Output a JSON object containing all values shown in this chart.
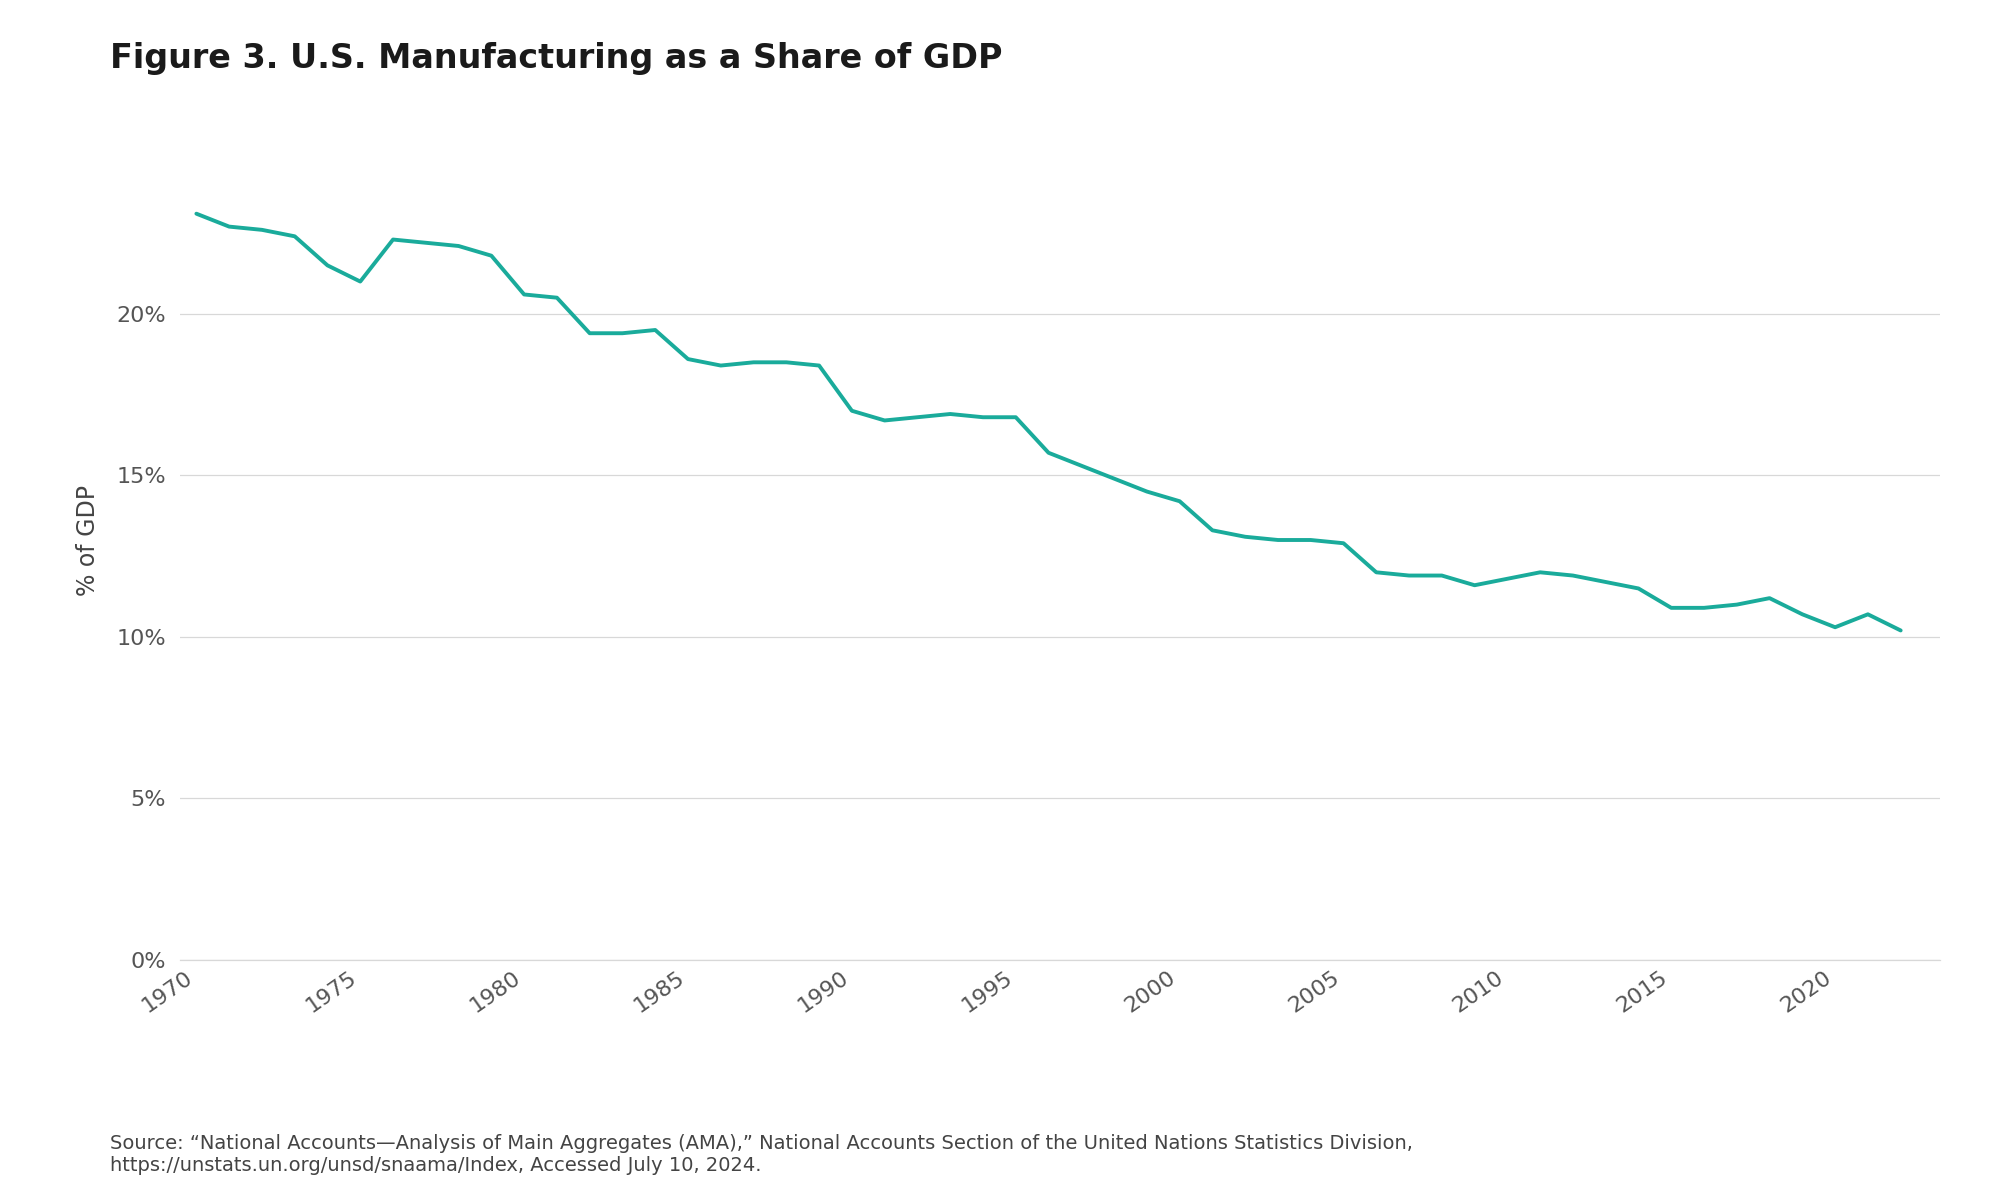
{
  "title": "Figure 3. U.S. Manufacturing as a Share of GDP",
  "ylabel": "% of GDP",
  "source_text": "Source: “National Accounts—Analysis of Main Aggregates (AMA),” National Accounts Section of the United Nations Statistics Division,\nhttps://unstats.un.org/unsd/snaama/Index, Accessed July 10, 2024.",
  "line_color": "#1aab9b",
  "line_width": 2.8,
  "background_color": "#ffffff",
  "grid_color": "#d8d8d8",
  "years": [
    1970,
    1971,
    1972,
    1973,
    1974,
    1975,
    1976,
    1977,
    1978,
    1979,
    1980,
    1981,
    1982,
    1983,
    1984,
    1985,
    1986,
    1987,
    1988,
    1989,
    1990,
    1991,
    1992,
    1993,
    1994,
    1995,
    1996,
    1997,
    1998,
    1999,
    2000,
    2001,
    2002,
    2003,
    2004,
    2005,
    2006,
    2007,
    2008,
    2009,
    2010,
    2011,
    2012,
    2013,
    2014,
    2015,
    2016,
    2017,
    2018,
    2019,
    2020,
    2021,
    2022
  ],
  "values": [
    23.1,
    22.7,
    22.6,
    22.4,
    21.5,
    21.0,
    22.3,
    22.2,
    22.1,
    21.8,
    20.6,
    20.5,
    19.4,
    19.4,
    19.5,
    18.6,
    18.4,
    18.5,
    18.5,
    18.4,
    17.0,
    16.7,
    16.8,
    16.9,
    16.8,
    16.8,
    15.7,
    15.3,
    14.9,
    14.5,
    14.2,
    13.3,
    13.1,
    13.0,
    13.0,
    12.9,
    12.0,
    11.9,
    11.9,
    11.6,
    11.8,
    12.0,
    11.9,
    11.7,
    11.5,
    10.9,
    10.9,
    11.0,
    11.2,
    10.7,
    10.3,
    10.7,
    10.2
  ],
  "ylim": [
    0,
    26
  ],
  "yticks": [
    0,
    5,
    10,
    15,
    20
  ],
  "ytick_labels": [
    "0%",
    "5%",
    "10%",
    "15%",
    "20%"
  ],
  "xticks": [
    1970,
    1975,
    1980,
    1985,
    1990,
    1995,
    2000,
    2005,
    2010,
    2015,
    2020
  ],
  "title_fontsize": 24,
  "label_fontsize": 17,
  "tick_fontsize": 16,
  "source_fontsize": 14,
  "title_color": "#1a1a1a",
  "tick_color": "#555555",
  "ylabel_color": "#444444",
  "source_color": "#444444"
}
